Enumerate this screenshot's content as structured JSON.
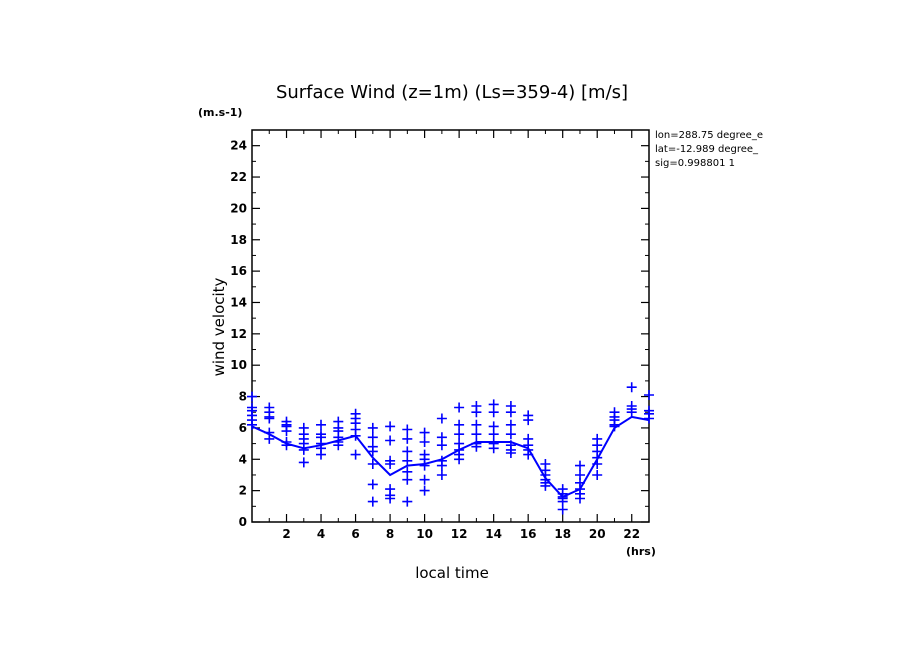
{
  "chart_data": {
    "type": "scatter",
    "title": "Surface Wind (z=1m) (Ls=359-4) [m/s]",
    "ylabel": "wind velocity",
    "yunit": "(m.s-1)",
    "xlabel": "local time",
    "xunit": "(hrs)",
    "xlim": [
      0,
      23
    ],
    "ylim": [
      0,
      25
    ],
    "xticks": [
      2,
      4,
      6,
      8,
      10,
      12,
      14,
      16,
      18,
      20,
      22
    ],
    "yticks": [
      0,
      2,
      4,
      6,
      8,
      10,
      12,
      14,
      16,
      18,
      20,
      22,
      24
    ],
    "annotations": [
      "lon=288.75 degree_e",
      "lat=-12.989 degree_",
      "sig=0.998801 1"
    ],
    "colors": {
      "series": "#0000ff",
      "axes": "#000000"
    },
    "mean_line": {
      "x": [
        0,
        1,
        2,
        3,
        4,
        5,
        6,
        7,
        8,
        9,
        10,
        11,
        12,
        13,
        14,
        15,
        16,
        17,
        18,
        19,
        20,
        21,
        22,
        23
      ],
      "y": [
        6.1,
        5.6,
        5.0,
        4.7,
        4.9,
        5.2,
        5.5,
        4.1,
        3.0,
        3.6,
        3.7,
        4.0,
        4.6,
        5.1,
        5.1,
        5.1,
        4.7,
        2.8,
        1.6,
        2.1,
        4.0,
        6.0,
        6.7,
        6.5
      ]
    },
    "samples": [
      {
        "x": 0,
        "y": [
          8.0,
          7.3,
          7.1,
          6.8,
          6.5,
          6.2
        ]
      },
      {
        "x": 1,
        "y": [
          7.3,
          7.0,
          6.7,
          6.6,
          5.7,
          5.3
        ]
      },
      {
        "x": 2,
        "y": [
          6.4,
          6.2,
          6.1,
          5.8,
          5.1,
          4.9
        ]
      },
      {
        "x": 3,
        "y": [
          6.0,
          5.6,
          5.3,
          5.0,
          4.6,
          3.8
        ]
      },
      {
        "x": 4,
        "y": [
          6.2,
          5.6,
          5.4,
          5.0,
          4.7,
          4.3
        ]
      },
      {
        "x": 5,
        "y": [
          6.4,
          6.0,
          5.8,
          5.4,
          5.1,
          4.9
        ]
      },
      {
        "x": 6,
        "y": [
          6.9,
          6.6,
          6.3,
          5.9,
          5.5,
          4.3
        ]
      },
      {
        "x": 7,
        "y": [
          6.0,
          5.4,
          4.8,
          4.5,
          3.7,
          2.4,
          1.3
        ]
      },
      {
        "x": 8,
        "y": [
          6.1,
          5.2,
          3.9,
          3.7,
          2.1,
          1.7,
          1.5
        ]
      },
      {
        "x": 9,
        "y": [
          5.9,
          5.3,
          4.5,
          3.9,
          3.2,
          2.7,
          1.3
        ]
      },
      {
        "x": 10,
        "y": [
          5.7,
          5.1,
          4.3,
          4.0,
          3.6,
          2.7,
          2.0
        ]
      },
      {
        "x": 11,
        "y": [
          6.6,
          5.4,
          4.9,
          3.9,
          3.6,
          3.0
        ]
      },
      {
        "x": 12,
        "y": [
          7.3,
          6.2,
          5.6,
          5.0,
          4.6,
          4.3,
          4.0
        ]
      },
      {
        "x": 13,
        "y": [
          7.4,
          7.0,
          6.2,
          5.6,
          5.0,
          4.8
        ]
      },
      {
        "x": 14,
        "y": [
          7.5,
          7.0,
          6.1,
          5.6,
          5.0,
          4.7
        ]
      },
      {
        "x": 15,
        "y": [
          7.4,
          7.0,
          6.2,
          5.6,
          4.9,
          4.6,
          4.4
        ]
      },
      {
        "x": 16,
        "y": [
          6.8,
          6.5,
          5.3,
          4.9,
          4.6,
          4.3
        ]
      },
      {
        "x": 17,
        "y": [
          3.7,
          3.3,
          3.0,
          2.7,
          2.5,
          2.3
        ]
      },
      {
        "x": 18,
        "y": [
          2.1,
          1.8,
          1.6,
          1.5,
          1.3,
          0.8
        ]
      },
      {
        "x": 19,
        "y": [
          3.6,
          3.0,
          2.5,
          2.1,
          1.8,
          1.5
        ]
      },
      {
        "x": 20,
        "y": [
          5.3,
          4.9,
          4.5,
          4.1,
          3.7,
          3.0
        ]
      },
      {
        "x": 21,
        "y": [
          7.0,
          6.7,
          6.5,
          6.2,
          6.1
        ]
      },
      {
        "x": 22,
        "y": [
          8.6,
          7.4,
          7.2,
          7.0
        ]
      },
      {
        "x": 23,
        "y": [
          8.1,
          7.1,
          6.9,
          6.6
        ]
      }
    ]
  }
}
